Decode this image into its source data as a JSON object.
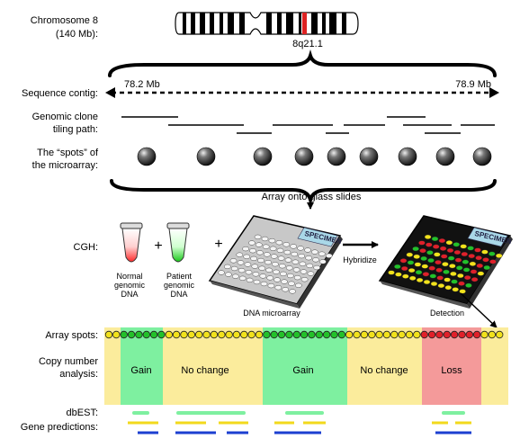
{
  "chromosome": {
    "label_line1": "Chromosome 8",
    "label_line2": "(140 Mb):",
    "band": "8q21.1"
  },
  "sequence_contig": {
    "label": "Sequence contig:",
    "start": "78.2 Mb",
    "end": "78.9 Mb"
  },
  "clone_tiling": {
    "label_line1": "Genomic clone",
    "label_line2": "tiling path:"
  },
  "spots": {
    "label_line1": "The “spots” of",
    "label_line2": "the microarray:",
    "count": 9
  },
  "array_caption": "Array onto  glass slides",
  "cgh": {
    "label": "CGH:",
    "plus": "+",
    "normal_dna": [
      "Normal",
      "genomic",
      "DNA"
    ],
    "patient_dna": [
      "Patient",
      "genomic",
      "DNA"
    ],
    "microarray_label": "DNA microarray",
    "specimen_label": "SPECIMEN",
    "hybridize_label": "Hybridize",
    "detection_label": "Detection"
  },
  "array_spots": {
    "label": "Array spots:"
  },
  "copy_number": {
    "label_line1": "Copy number",
    "label_line2": "analysis:",
    "regions": [
      {
        "label": "Gain",
        "state": "gain"
      },
      {
        "label": "No change",
        "state": "neutral"
      },
      {
        "label": "Gain",
        "state": "gain"
      },
      {
        "label": "No change",
        "state": "neutral"
      },
      {
        "label": "Loss",
        "state": "loss"
      }
    ]
  },
  "dbest": {
    "label": "dbEST:"
  },
  "gene_predictions": {
    "label": "Gene predictions:"
  },
  "colors": {
    "gain": "#7ef0a0",
    "neutral": "#fbec9c",
    "loss": "#f49a9a",
    "spot_yellow": "#f2e21c",
    "spot_green": "#22c12a",
    "spot_red": "#e0202a",
    "dbest": "#7ef0a0",
    "gene_yellow": "#f2d91c",
    "gene_blue": "#1c3fd0"
  }
}
